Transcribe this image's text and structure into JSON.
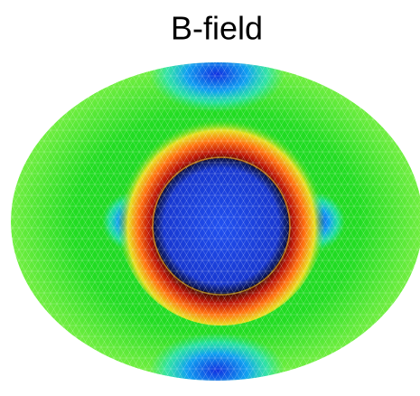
{
  "title": "B-field"
}
